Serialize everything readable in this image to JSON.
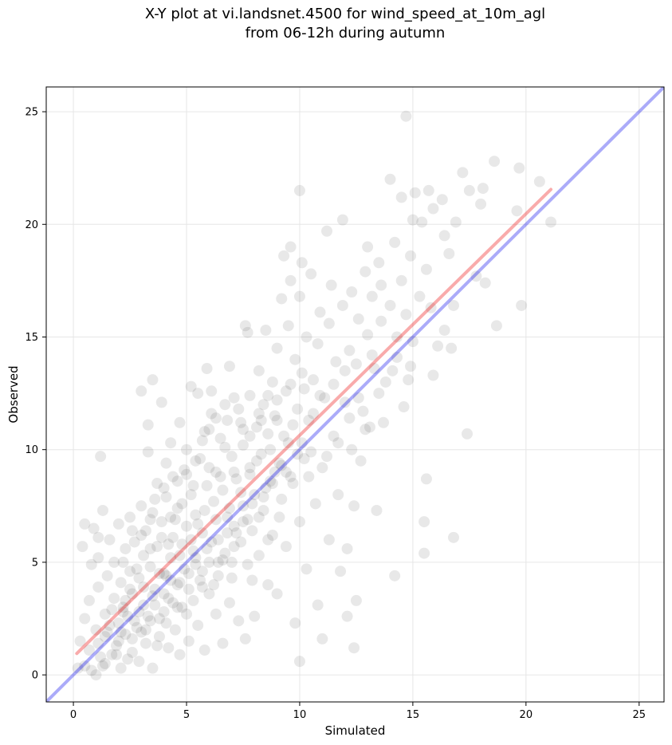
{
  "chart_data": {
    "type": "scatter",
    "title": [
      "X-Y plot at vi.landsnet.4500 for wind_speed_at_10m_agl",
      "from 06-12h during autumn"
    ],
    "xlabel": "Simulated",
    "ylabel": "Observed",
    "xlim": [
      -1.2,
      26.1
    ],
    "ylim": [
      -1.2,
      26.1
    ],
    "xticks": [
      0,
      5,
      10,
      15,
      20,
      25
    ],
    "yticks": [
      0,
      5,
      10,
      15,
      20,
      25
    ],
    "grid": true,
    "colors": {
      "points": "#000000",
      "one_to_one": "#0000ee",
      "fit": "#ee0000"
    },
    "reference_lines": [
      {
        "role": "one-to-one",
        "x": [
          -1.2,
          26.1
        ],
        "y": [
          -1.2,
          26.1
        ],
        "color": "#0000ee"
      },
      {
        "role": "regression",
        "x": [
          0.15,
          21.1
        ],
        "y": [
          0.95,
          21.55
        ],
        "color": "#ee0000"
      }
    ],
    "points": [
      [
        0.2,
        0.3
      ],
      [
        0.3,
        1.5
      ],
      [
        0.5,
        0.4
      ],
      [
        0.5,
        2.5
      ],
      [
        0.4,
        5.7
      ],
      [
        0.5,
        6.7
      ],
      [
        0.7,
        1.1
      ],
      [
        0.7,
        3.3
      ],
      [
        0.8,
        4.9
      ],
      [
        0.9,
        6.5
      ],
      [
        1.0,
        0.0
      ],
      [
        1.0,
        2.0
      ],
      [
        1.1,
        3.9
      ],
      [
        1.1,
        5.2
      ],
      [
        1.1,
        6.1
      ],
      [
        1.2,
        9.7
      ],
      [
        1.3,
        0.4
      ],
      [
        1.3,
        7.3
      ],
      [
        1.4,
        1.7
      ],
      [
        1.4,
        2.7
      ],
      [
        1.5,
        4.4
      ],
      [
        1.6,
        6.0
      ],
      [
        1.7,
        0.9
      ],
      [
        1.8,
        3.4
      ],
      [
        1.8,
        5.0
      ],
      [
        1.9,
        1.3
      ],
      [
        2.0,
        2.3
      ],
      [
        2.0,
        6.7
      ],
      [
        2.1,
        4.1
      ],
      [
        2.1,
        0.3
      ],
      [
        2.2,
        3.0
      ],
      [
        2.3,
        5.6
      ],
      [
        2.3,
        1.8
      ],
      [
        2.4,
        2.6
      ],
      [
        2.5,
        4.6
      ],
      [
        2.5,
        7.0
      ],
      [
        2.6,
        1.0
      ],
      [
        2.6,
        3.6
      ],
      [
        2.7,
        5.9
      ],
      [
        2.8,
        2.1
      ],
      [
        2.9,
        0.6
      ],
      [
        2.9,
        4.3
      ],
      [
        3.0,
        7.5
      ],
      [
        3.0,
        12.6
      ],
      [
        3.1,
        3.1
      ],
      [
        3.1,
        5.3
      ],
      [
        3.2,
        1.4
      ],
      [
        3.2,
        6.4
      ],
      [
        3.3,
        11.1
      ],
      [
        3.3,
        9.9
      ],
      [
        3.4,
        2.4
      ],
      [
        3.4,
        4.8
      ],
      [
        3.5,
        0.3
      ],
      [
        3.5,
        7.2
      ],
      [
        3.5,
        13.1
      ],
      [
        3.6,
        3.8
      ],
      [
        3.7,
        5.7
      ],
      [
        3.7,
        8.5
      ],
      [
        3.8,
        1.7
      ],
      [
        3.9,
        6.8
      ],
      [
        3.9,
        12.1
      ],
      [
        4.0,
        2.8
      ],
      [
        4.0,
        4.5
      ],
      [
        4.1,
        9.4
      ],
      [
        4.1,
        7.9
      ],
      [
        4.2,
        1.2
      ],
      [
        4.2,
        3.4
      ],
      [
        4.3,
        5.2
      ],
      [
        4.3,
        10.3
      ],
      [
        4.4,
        6.1
      ],
      [
        4.4,
        8.8
      ],
      [
        4.5,
        2.0
      ],
      [
        4.6,
        4.0
      ],
      [
        4.6,
        7.4
      ],
      [
        4.7,
        0.9
      ],
      [
        4.7,
        11.2
      ],
      [
        4.8,
        5.8
      ],
      [
        4.8,
        3.0
      ],
      [
        4.9,
        9.1
      ],
      [
        5.0,
        6.6
      ],
      [
        5.0,
        10.0
      ],
      [
        5.1,
        4.5
      ],
      [
        5.1,
        1.5
      ],
      [
        5.2,
        8.0
      ],
      [
        5.2,
        12.8
      ],
      [
        5.3,
        3.3
      ],
      [
        5.3,
        5.5
      ],
      [
        5.4,
        7.1
      ],
      [
        5.5,
        2.2
      ],
      [
        5.5,
        12.5
      ],
      [
        5.6,
        9.6
      ],
      [
        5.6,
        4.2
      ],
      [
        5.7,
        6.3
      ],
      [
        5.8,
        10.8
      ],
      [
        5.8,
        1.1
      ],
      [
        5.9,
        8.4
      ],
      [
        5.9,
        13.6
      ],
      [
        6.0,
        5.0
      ],
      [
        6.0,
        3.6
      ],
      [
        6.1,
        11.6
      ],
      [
        6.1,
        12.6
      ],
      [
        6.2,
        7.7
      ],
      [
        6.3,
        2.7
      ],
      [
        6.3,
        9.0
      ],
      [
        6.4,
        6.0
      ],
      [
        6.4,
        4.4
      ],
      [
        6.5,
        10.5
      ],
      [
        6.6,
        8.2
      ],
      [
        6.6,
        1.4
      ],
      [
        6.7,
        5.4
      ],
      [
        6.8,
        11.3
      ],
      [
        6.8,
        7.0
      ],
      [
        6.9,
        3.2
      ],
      [
        6.9,
        13.7
      ],
      [
        7.0,
        9.7
      ],
      [
        7.0,
        4.3
      ],
      [
        7.1,
        6.6
      ],
      [
        7.2,
        8.7
      ],
      [
        7.3,
        2.4
      ],
      [
        7.3,
        11.8
      ],
      [
        7.4,
        5.9
      ],
      [
        7.5,
        10.2
      ],
      [
        7.5,
        7.5
      ],
      [
        7.6,
        15.5
      ],
      [
        7.6,
        1.6
      ],
      [
        7.7,
        15.2
      ],
      [
        7.7,
        4.9
      ],
      [
        7.8,
        9.2
      ],
      [
        7.8,
        12.4
      ],
      [
        7.9,
        6.4
      ],
      [
        8.0,
        8.0
      ],
      [
        8.0,
        2.6
      ],
      [
        8.1,
        11.0
      ],
      [
        8.2,
        13.5
      ],
      [
        8.2,
        5.3
      ],
      [
        8.3,
        9.8
      ],
      [
        8.4,
        12.0
      ],
      [
        8.4,
        7.3
      ],
      [
        8.5,
        15.3
      ],
      [
        8.6,
        4.0
      ],
      [
        8.6,
        10.7
      ],
      [
        8.7,
        8.6
      ],
      [
        8.8,
        13.0
      ],
      [
        8.8,
        6.2
      ],
      [
        8.9,
        11.5
      ],
      [
        9.0,
        3.6
      ],
      [
        9.0,
        14.5
      ],
      [
        9.1,
        9.4
      ],
      [
        9.2,
        16.7
      ],
      [
        9.2,
        7.8
      ],
      [
        9.3,
        18.6
      ],
      [
        9.4,
        12.6
      ],
      [
        9.4,
        5.7
      ],
      [
        9.5,
        15.5
      ],
      [
        9.5,
        10.3
      ],
      [
        9.6,
        17.5
      ],
      [
        9.6,
        19.0
      ],
      [
        9.7,
        8.5
      ],
      [
        9.8,
        14.0
      ],
      [
        9.8,
        2.3
      ],
      [
        9.9,
        11.8
      ],
      [
        10.0,
        16.8
      ],
      [
        10.0,
        6.8
      ],
      [
        10.0,
        0.6
      ],
      [
        10.0,
        21.5
      ],
      [
        10.1,
        13.4
      ],
      [
        10.1,
        18.3
      ],
      [
        10.2,
        9.6
      ],
      [
        10.3,
        15.0
      ],
      [
        10.3,
        4.7
      ],
      [
        10.4,
        11.3
      ],
      [
        10.5,
        17.8
      ],
      [
        10.6,
        13.1
      ],
      [
        10.7,
        7.6
      ],
      [
        10.8,
        14.7
      ],
      [
        10.8,
        3.1
      ],
      [
        10.9,
        16.1
      ],
      [
        11.0,
        9.2
      ],
      [
        11.0,
        1.6
      ],
      [
        11.1,
        12.3
      ],
      [
        11.2,
        19.7
      ],
      [
        11.3,
        15.6
      ],
      [
        11.3,
        6.0
      ],
      [
        11.4,
        17.3
      ],
      [
        11.5,
        10.6
      ],
      [
        11.6,
        13.9
      ],
      [
        11.7,
        8.0
      ],
      [
        11.8,
        4.6
      ],
      [
        11.9,
        20.2
      ],
      [
        11.9,
        16.4
      ],
      [
        12.0,
        12.1
      ],
      [
        12.1,
        5.6
      ],
      [
        12.1,
        2.6
      ],
      [
        12.2,
        14.4
      ],
      [
        12.3,
        10.0
      ],
      [
        12.3,
        17.0
      ],
      [
        12.4,
        7.5
      ],
      [
        12.4,
        1.2
      ],
      [
        12.5,
        13.8
      ],
      [
        12.5,
        3.3
      ],
      [
        12.6,
        15.8
      ],
      [
        12.7,
        9.5
      ],
      [
        12.8,
        11.7
      ],
      [
        12.9,
        17.9
      ],
      [
        13.0,
        15.1
      ],
      [
        13.0,
        19.0
      ],
      [
        13.1,
        11.0
      ],
      [
        13.2,
        16.8
      ],
      [
        13.3,
        13.6
      ],
      [
        13.4,
        7.3
      ],
      [
        13.5,
        18.3
      ],
      [
        13.6,
        15.7
      ],
      [
        13.6,
        17.3
      ],
      [
        13.7,
        11.2
      ],
      [
        13.8,
        13.0
      ],
      [
        14.0,
        16.4
      ],
      [
        14.0,
        22.0
      ],
      [
        14.1,
        13.5
      ],
      [
        14.2,
        4.4
      ],
      [
        14.2,
        19.2
      ],
      [
        14.3,
        15.0
      ],
      [
        14.5,
        17.5
      ],
      [
        14.5,
        21.2
      ],
      [
        14.6,
        11.9
      ],
      [
        14.7,
        24.8
      ],
      [
        14.7,
        16.0
      ],
      [
        14.8,
        13.1
      ],
      [
        14.9,
        18.6
      ],
      [
        15.0,
        20.2
      ],
      [
        15.0,
        14.8
      ],
      [
        15.1,
        21.4
      ],
      [
        15.3,
        16.8
      ],
      [
        15.4,
        20.1
      ],
      [
        15.5,
        5.4
      ],
      [
        15.5,
        6.8
      ],
      [
        15.6,
        8.7
      ],
      [
        15.6,
        18.0
      ],
      [
        15.7,
        21.5
      ],
      [
        15.8,
        16.3
      ],
      [
        15.9,
        13.3
      ],
      [
        15.9,
        20.7
      ],
      [
        16.1,
        14.6
      ],
      [
        16.3,
        21.1
      ],
      [
        16.4,
        19.5
      ],
      [
        16.4,
        15.3
      ],
      [
        16.6,
        18.7
      ],
      [
        16.7,
        14.5
      ],
      [
        16.8,
        16.4
      ],
      [
        16.8,
        6.1
      ],
      [
        16.9,
        20.1
      ],
      [
        17.2,
        22.3
      ],
      [
        17.4,
        10.7
      ],
      [
        17.5,
        21.5
      ],
      [
        17.8,
        17.7
      ],
      [
        18.1,
        21.6
      ],
      [
        18.2,
        17.4
      ],
      [
        18.0,
        20.9
      ],
      [
        18.6,
        22.8
      ],
      [
        18.7,
        15.5
      ],
      [
        19.6,
        20.6
      ],
      [
        19.7,
        22.5
      ],
      [
        19.8,
        16.4
      ],
      [
        20.6,
        21.9
      ],
      [
        21.1,
        20.1
      ],
      [
        1.2,
        0.8
      ],
      [
        1.5,
        1.9
      ],
      [
        1.7,
        2.9
      ],
      [
        2.0,
        1.5
      ],
      [
        2.2,
        2.8
      ],
      [
        2.4,
        0.7
      ],
      [
        2.5,
        3.8
      ],
      [
        2.7,
        2.4
      ],
      [
        2.8,
        4.7
      ],
      [
        3.0,
        1.9
      ],
      [
        3.1,
        3.9
      ],
      [
        3.3,
        2.6
      ],
      [
        3.4,
        5.6
      ],
      [
        3.6,
        3.1
      ],
      [
        3.7,
        1.3
      ],
      [
        3.8,
        4.5
      ],
      [
        3.9,
        6.1
      ],
      [
        4.0,
        3.6
      ],
      [
        4.1,
        2.3
      ],
      [
        4.2,
        5.8
      ],
      [
        4.3,
        4.2
      ],
      [
        4.5,
        6.9
      ],
      [
        4.6,
        3.0
      ],
      [
        4.7,
        5.3
      ],
      [
        4.8,
        7.6
      ],
      [
        4.9,
        4.7
      ],
      [
        5.0,
        2.7
      ],
      [
        5.2,
        6.0
      ],
      [
        5.3,
        8.4
      ],
      [
        5.4,
        4.9
      ],
      [
        5.5,
        6.7
      ],
      [
        5.7,
        3.9
      ],
      [
        5.8,
        7.3
      ],
      [
        5.9,
        5.6
      ],
      [
        6.0,
        9.2
      ],
      [
        6.2,
        4.0
      ],
      [
        6.3,
        6.9
      ],
      [
        6.5,
        8.8
      ],
      [
        6.6,
        5.1
      ],
      [
        6.7,
        10.1
      ],
      [
        6.9,
        7.4
      ],
      [
        7.0,
        5.0
      ],
      [
        7.1,
        9.0
      ],
      [
        7.2,
        6.3
      ],
      [
        7.4,
        8.1
      ],
      [
        7.5,
        10.9
      ],
      [
        7.7,
        6.9
      ],
      [
        7.8,
        8.9
      ],
      [
        7.9,
        4.2
      ],
      [
        8.1,
        9.5
      ],
      [
        8.2,
        7.0
      ],
      [
        8.3,
        11.3
      ],
      [
        8.5,
        8.3
      ],
      [
        8.6,
        6.0
      ],
      [
        8.7,
        10.0
      ],
      [
        8.9,
        9.0
      ],
      [
        9.0,
        12.2
      ],
      [
        9.1,
        7.0
      ],
      [
        9.3,
        10.6
      ],
      [
        9.4,
        9.0
      ],
      [
        9.6,
        12.9
      ],
      [
        9.7,
        11.1
      ],
      [
        9.9,
        9.8
      ],
      [
        10.2,
        12.7
      ],
      [
        10.4,
        8.8
      ],
      [
        10.6,
        11.6
      ],
      [
        10.9,
        12.4
      ],
      [
        11.2,
        9.7
      ],
      [
        11.5,
        12.9
      ],
      [
        11.7,
        10.3
      ],
      [
        12.0,
        13.5
      ],
      [
        12.2,
        11.4
      ],
      [
        12.6,
        12.3
      ],
      [
        12.9,
        10.9
      ],
      [
        13.2,
        14.2
      ],
      [
        13.5,
        12.5
      ],
      [
        14.3,
        14.1
      ],
      [
        14.9,
        13.7
      ],
      [
        0.8,
        0.2
      ],
      [
        1.1,
        1.4
      ],
      [
        1.4,
        0.5
      ],
      [
        1.6,
        2.2
      ],
      [
        1.9,
        0.9
      ],
      [
        2.1,
        1.9
      ],
      [
        2.3,
        3.3
      ],
      [
        2.6,
        1.6
      ],
      [
        2.9,
        2.8
      ],
      [
        3.2,
        2.0
      ],
      [
        3.5,
        3.5
      ],
      [
        3.8,
        2.5
      ],
      [
        4.1,
        4.4
      ],
      [
        4.4,
        3.2
      ],
      [
        4.7,
        4.1
      ],
      [
        5.1,
        3.8
      ],
      [
        5.4,
        5.2
      ],
      [
        5.7,
        4.6
      ],
      [
        6.1,
        5.9
      ],
      [
        6.4,
        5.0
      ],
      [
        6.8,
        6.3
      ],
      [
        7.1,
        5.7
      ],
      [
        7.5,
        6.8
      ],
      [
        7.9,
        7.6
      ],
      [
        8.4,
        7.9
      ],
      [
        8.8,
        8.5
      ],
      [
        9.2,
        9.3
      ],
      [
        9.6,
        8.8
      ],
      [
        10.1,
        10.3
      ],
      [
        10.5,
        9.9
      ],
      [
        2.2,
        5.0
      ],
      [
        2.6,
        6.4
      ],
      [
        3.0,
        6.2
      ],
      [
        3.4,
        6.9
      ],
      [
        3.6,
        7.8
      ],
      [
        4.0,
        8.3
      ],
      [
        4.3,
        7.0
      ],
      [
        4.6,
        8.6
      ],
      [
        5.0,
        8.9
      ],
      [
        5.4,
        9.5
      ],
      [
        5.7,
        10.4
      ],
      [
        6.0,
        10.9
      ],
      [
        6.3,
        11.4
      ],
      [
        6.7,
        12.0
      ],
      [
        7.1,
        12.3
      ],
      [
        7.4,
        11.2
      ],
      [
        7.8,
        10.6
      ],
      [
        8.2,
        11.6
      ],
      [
        8.6,
        12.4
      ],
      [
        9.0,
        11.3
      ]
    ]
  }
}
